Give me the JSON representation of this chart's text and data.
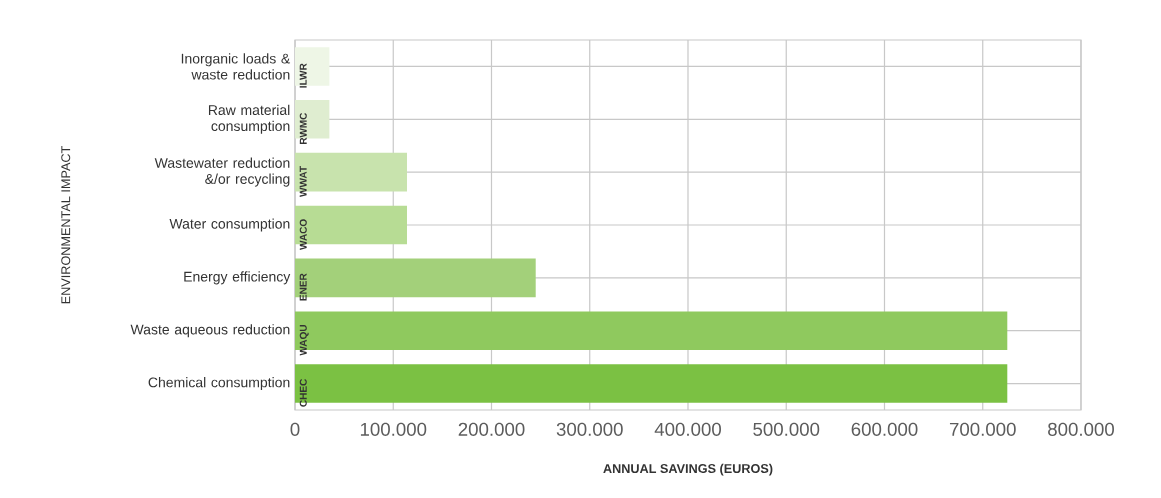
{
  "chart_data": {
    "type": "bar",
    "orientation": "horizontal",
    "xlabel": "ANNUAL SAVINGS (EUROS)",
    "ylabel": "ENVIRONMENTAL IMPACT",
    "categories": [
      "Inorganic loads & waste reduction",
      "Raw material consumption",
      "Wastewater reduction &/or recycling",
      "Water consumption",
      "Energy efficiency",
      "Waste aqueous reduction",
      "Chemical consumption"
    ],
    "values": [
      35000,
      35000,
      114000,
      114000,
      245000,
      725000,
      725000
    ],
    "colors": [
      "#eef6e6",
      "#dfedd0",
      "#c8e3ad",
      "#b7dc94",
      "#a3d07a",
      "#8fc95e",
      "#7bc143"
    ],
    "xlim": [
      0,
      800000
    ],
    "xticks": [
      0,
      {
        "value": 100000,
        "label": "100.000"
      },
      {
        "value": 200000,
        "label": "200.000"
      },
      {
        "value": 300000,
        "label": "300.000"
      },
      {
        "value": 400000,
        "label": "400.000"
      },
      {
        "value": 500000,
        "label": "500.000"
      },
      {
        "value": 600000,
        "label": "600.000"
      },
      {
        "value": 700000,
        "label": "700.000"
      },
      {
        "value": 800000,
        "label": "800.000"
      }
    ],
    "grid": true,
    "value_labels": [
      "ILWR",
      "RWMC",
      "WWAT",
      "WACO",
      "ENER",
      "WAQU",
      "CHEC"
    ]
  }
}
